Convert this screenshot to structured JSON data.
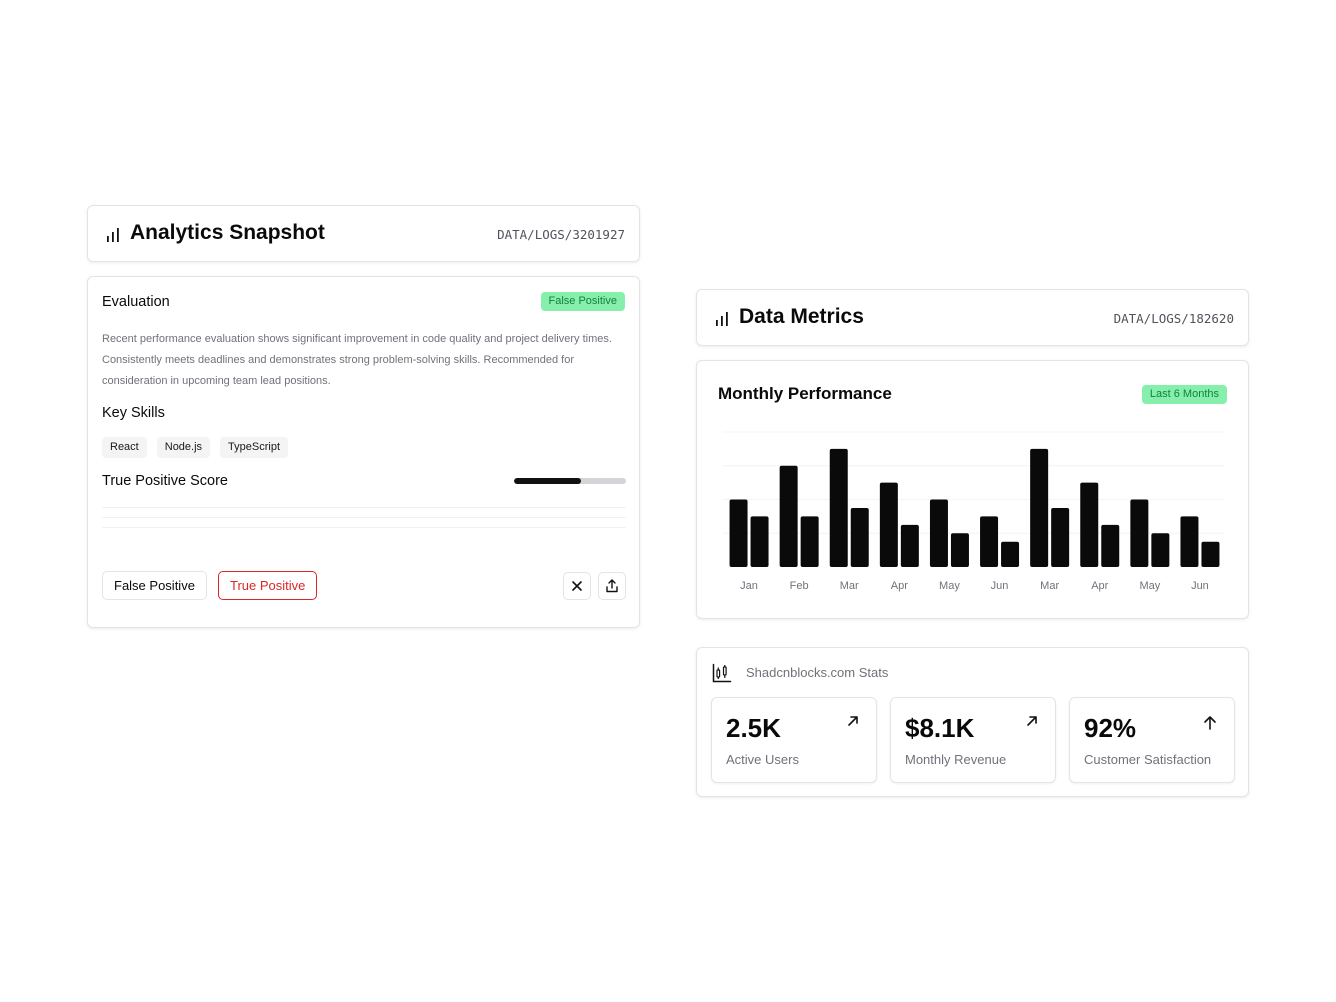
{
  "analytics": {
    "title": "Analytics Snapshot",
    "code": "DATA/LOGS/3201927",
    "icon": "bar-chart-icon"
  },
  "evaluation": {
    "title": "Evaluation",
    "badge": "False Positive",
    "description": "Recent performance evaluation shows significant improvement in code quality and project delivery times. Consistently meets deadlines and demonstrates strong problem-solving skills. Recommended for consideration in upcoming team lead positions.",
    "skills_title": "Key Skills",
    "skills": [
      "React",
      "Node.js",
      "TypeScript"
    ],
    "score_title": "True Positive Score",
    "score_fraction": 0.6,
    "buttons": {
      "false_positive": "False Positive",
      "true_positive": "True Positive"
    },
    "icons": [
      "close-icon",
      "share-icon"
    ]
  },
  "metrics": {
    "title": "Data Metrics",
    "code": "DATA/LOGS/182620",
    "icon": "bar-chart-icon"
  },
  "performance": {
    "title": "Monthly Performance",
    "badge": "Last 6 Months"
  },
  "chart_data": {
    "type": "bar",
    "categories": [
      "Jan",
      "Feb",
      "Mar",
      "Apr",
      "May",
      "Jun",
      "Mar",
      "Apr",
      "May",
      "Jun"
    ],
    "series": [
      {
        "values": [
          4,
          6,
          7,
          5,
          4,
          3,
          7,
          5,
          4,
          3
        ]
      },
      {
        "values": [
          3,
          3,
          3.5,
          2.5,
          2,
          1.5,
          3.5,
          2.5,
          2,
          1.5
        ]
      }
    ],
    "ylim": [
      0,
      8
    ],
    "grid": true,
    "colors": {
      "bar": "#0a0a0a",
      "grid": "#f4f4f5"
    }
  },
  "stats": {
    "label": "Shadcnblocks.com Stats",
    "icon": "chart-candlestick-icon",
    "items": [
      {
        "value": "2.5K",
        "label": "Active Users",
        "icon": "arrow-up-right-icon"
      },
      {
        "value": "$8.1K",
        "label": "Monthly Revenue",
        "icon": "arrow-up-right-icon"
      },
      {
        "value": "92%",
        "label": "Customer Satisfaction",
        "icon": "arrow-up-icon"
      }
    ]
  },
  "colors": {
    "badge_bg": "#86efac",
    "badge_text": "#15803d",
    "danger": "#dc2626",
    "muted": "#71717a"
  }
}
